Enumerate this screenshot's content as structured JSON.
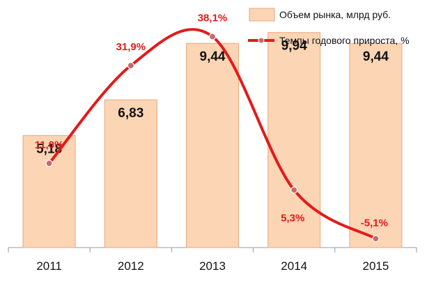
{
  "chart_data": {
    "type": "bar",
    "categories": [
      "2011",
      "2012",
      "2013",
      "2014",
      "2015"
    ],
    "series": [
      {
        "name": "Объем рынка, млрд руб.",
        "type": "bar",
        "axis": "left",
        "values": [
          5.18,
          6.83,
          9.44,
          9.94,
          9.44
        ],
        "labels": [
          "5,18",
          "6,83",
          "9,44",
          "9,94",
          "9,44"
        ],
        "color": "#fcd5b5",
        "border": "#e6a97e"
      },
      {
        "name": "Темпы годового прироста, %",
        "type": "line",
        "axis": "right",
        "values": [
          11.0,
          31.9,
          38.1,
          5.3,
          -5.1
        ],
        "labels": [
          "11,0%",
          "31,9%",
          "38,1%",
          "5,3%",
          "-5,1%"
        ],
        "color": "#e41a1a",
        "marker_color": "#c8686e"
      }
    ],
    "ylim": [
      0,
      10.8
    ],
    "y2lim": [
      -7,
      41
    ],
    "grid": false,
    "legend": "top-right"
  }
}
